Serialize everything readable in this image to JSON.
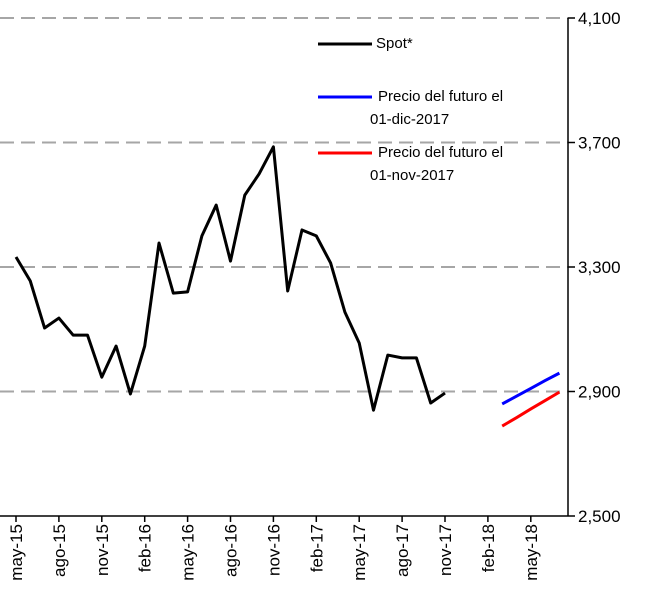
{
  "chart_data": {
    "type": "line",
    "categories": [
      "may-15",
      null,
      null,
      "ago-15",
      null,
      null,
      "nov-15",
      null,
      null,
      "feb-16",
      null,
      null,
      "may-16",
      null,
      null,
      "ago-16",
      null,
      null,
      "nov-16",
      null,
      null,
      "feb-17",
      null,
      null,
      "may-17",
      null,
      null,
      "ago-17",
      null,
      null,
      "nov-17",
      null,
      null,
      "feb-18",
      null,
      null,
      "may-18",
      null,
      null
    ],
    "series": [
      {
        "name": "Spot*",
        "color": "#000000",
        "values": [
          3332,
          3255,
          3104,
          3136,
          3081,
          3081,
          2946,
          3046,
          2892,
          3046,
          3377,
          3216,
          3220,
          3400,
          3499,
          3319,
          3531,
          3599,
          3686,
          3223,
          3419,
          3400,
          3313,
          3155,
          3056,
          2840,
          3017,
          3008,
          3008,
          2863,
          2895,
          null,
          null,
          null,
          null,
          null,
          null,
          null,
          null
        ]
      },
      {
        "name": "Precio del futuro el 01-dic-2017",
        "color": "#0000ff",
        "values": [
          null,
          null,
          null,
          null,
          null,
          null,
          null,
          null,
          null,
          null,
          null,
          null,
          null,
          null,
          null,
          null,
          null,
          null,
          null,
          null,
          null,
          null,
          null,
          null,
          null,
          null,
          null,
          null,
          null,
          null,
          null,
          null,
          null,
          null,
          2860,
          2885,
          2910,
          2935,
          2959
        ]
      },
      {
        "name": "Precio del futuro el 01-nov-2017",
        "color": "#ff0000",
        "values": [
          null,
          null,
          null,
          null,
          null,
          null,
          null,
          null,
          null,
          null,
          null,
          null,
          null,
          null,
          null,
          null,
          null,
          null,
          null,
          null,
          null,
          null,
          null,
          null,
          null,
          null,
          null,
          null,
          null,
          null,
          null,
          null,
          null,
          null,
          2789,
          2816,
          2844,
          2871,
          2898
        ]
      }
    ],
    "ylim": [
      2500,
      4100
    ],
    "yticks": [
      {
        "value": 2500,
        "label": "2,500"
      },
      {
        "value": 2900,
        "label": "2,900"
      },
      {
        "value": 3300,
        "label": "3,300"
      },
      {
        "value": 3700,
        "label": "3,700"
      },
      {
        "value": 4100,
        "label": "4,100"
      }
    ],
    "grid": true,
    "legend": "top"
  }
}
